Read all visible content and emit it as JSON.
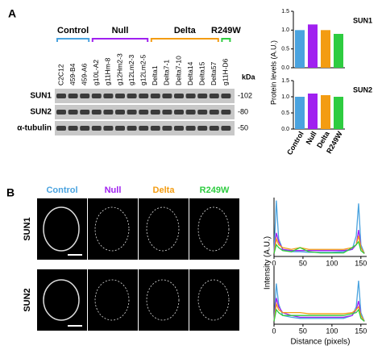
{
  "panel_a": {
    "label": "A",
    "kda_label": "kDa",
    "groups": [
      {
        "name": "Control",
        "color": "#4aa3df",
        "lanes": [
          "C2C12",
          "459-B4",
          "459-A6"
        ]
      },
      {
        "name": "Null",
        "color": "#a020f0",
        "lanes": [
          "g10L-A2",
          "g11Hm-8",
          "g12Hm2-3",
          "g12Lm2-3",
          "g12Lm2-5"
        ]
      },
      {
        "name": "Delta",
        "color": "#f39c12",
        "lanes": [
          "Delta1",
          "Delta7-1",
          "Delta7-10",
          "Delta14",
          "Delta15",
          "Delta57"
        ]
      },
      {
        "name": "R249W",
        "color": "#2ecc40",
        "lanes": [
          "g11H-D6"
        ]
      }
    ],
    "rows": [
      {
        "name": "SUN1",
        "kda": "-102"
      },
      {
        "name": "SUN2",
        "kda": "-80"
      },
      {
        "name": "α-tubulin",
        "kda": "-50"
      }
    ]
  },
  "panel_b": {
    "label": "B",
    "columns": [
      {
        "name": "Control",
        "color": "#4aa3df"
      },
      {
        "name": "Null",
        "color": "#a020f0"
      },
      {
        "name": "Delta",
        "color": "#f39c12"
      },
      {
        "name": "R249W",
        "color": "#2ecc40"
      }
    ],
    "rows": [
      "SUN1",
      "SUN2"
    ]
  },
  "chart_data": [
    {
      "type": "bar",
      "title": "SUN1",
      "ylabel": "Protein levels (A.U.)",
      "categories": [
        null,
        null,
        null,
        null
      ],
      "values": [
        1.0,
        1.15,
        1.0,
        0.9
      ],
      "colors": [
        "#4aa3df",
        "#a020f0",
        "#f39c12",
        "#2ecc40"
      ],
      "ylim": [
        0,
        1.5
      ],
      "yticks": [
        {
          "value": 0,
          "label": "0.0"
        },
        {
          "value": 0.5,
          "label": "0.5"
        },
        {
          "value": 1,
          "label": "1.0"
        },
        {
          "value": 1.5,
          "label": "1.5"
        }
      ]
    },
    {
      "type": "bar",
      "title": "SUN2",
      "categories": [
        "Control",
        "Null",
        "Delta",
        "R249W"
      ],
      "values": [
        1.0,
        1.1,
        1.05,
        1.0
      ],
      "colors": [
        "#4aa3df",
        "#a020f0",
        "#f39c12",
        "#2ecc40"
      ],
      "ylim": [
        0,
        1.5
      ],
      "yticks": [
        {
          "value": 0,
          "label": "0.0"
        },
        {
          "value": 0.5,
          "label": "0.5"
        },
        {
          "value": 1,
          "label": "1.0"
        },
        {
          "value": 1.5,
          "label": "1.5"
        }
      ]
    },
    {
      "type": "line",
      "ylabel": "Intensity (A.U.)",
      "x": [
        0,
        4,
        8,
        15,
        30,
        45,
        60,
        80,
        100,
        120,
        135,
        142,
        146,
        150,
        156
      ],
      "xlim": [
        0,
        160
      ],
      "xticks": [
        0,
        50,
        100,
        150
      ],
      "ylim": [
        0,
        1
      ],
      "series": [
        {
          "name": "Control",
          "color": "#4aa3df",
          "values": [
            0.05,
            0.95,
            0.3,
            0.12,
            0.08,
            0.08,
            0.07,
            0.07,
            0.07,
            0.08,
            0.12,
            0.35,
            0.9,
            0.2,
            0.05
          ]
        },
        {
          "name": "Null",
          "color": "#a020f0",
          "values": [
            0.05,
            0.4,
            0.25,
            0.12,
            0.1,
            0.1,
            0.1,
            0.1,
            0.1,
            0.1,
            0.12,
            0.2,
            0.45,
            0.15,
            0.05
          ]
        },
        {
          "name": "Delta",
          "color": "#f39c12",
          "values": [
            0.05,
            0.3,
            0.2,
            0.15,
            0.12,
            0.15,
            0.12,
            0.12,
            0.12,
            0.12,
            0.15,
            0.2,
            0.35,
            0.15,
            0.05
          ]
        },
        {
          "name": "R249W",
          "color": "#2ecc40",
          "values": [
            0.05,
            0.2,
            0.15,
            0.1,
            0.08,
            0.15,
            0.08,
            0.06,
            0.06,
            0.06,
            0.15,
            0.2,
            0.25,
            0.1,
            0.05
          ]
        }
      ]
    },
    {
      "type": "line",
      "xlabel": "Distance (pixels)",
      "x": [
        0,
        4,
        8,
        15,
        30,
        45,
        60,
        80,
        100,
        120,
        135,
        142,
        146,
        150,
        156
      ],
      "xlim": [
        0,
        160
      ],
      "xticks": [
        0,
        50,
        100,
        150
      ],
      "ylim": [
        0,
        1
      ],
      "series": [
        {
          "name": "Control",
          "color": "#4aa3df",
          "values": [
            0.05,
            0.7,
            0.35,
            0.15,
            0.12,
            0.1,
            0.1,
            0.1,
            0.1,
            0.1,
            0.15,
            0.3,
            0.75,
            0.2,
            0.05
          ]
        },
        {
          "name": "Null",
          "color": "#a020f0",
          "values": [
            0.05,
            0.45,
            0.3,
            0.2,
            0.15,
            0.12,
            0.12,
            0.12,
            0.12,
            0.12,
            0.15,
            0.25,
            0.4,
            0.15,
            0.05
          ]
        },
        {
          "name": "Delta",
          "color": "#f39c12",
          "values": [
            0.05,
            0.35,
            0.25,
            0.2,
            0.2,
            0.2,
            0.18,
            0.18,
            0.18,
            0.18,
            0.2,
            0.25,
            0.3,
            0.15,
            0.05
          ]
        },
        {
          "name": "R249W",
          "color": "#2ecc40",
          "values": [
            0.05,
            0.25,
            0.2,
            0.15,
            0.15,
            0.15,
            0.15,
            0.15,
            0.15,
            0.15,
            0.18,
            0.2,
            0.25,
            0.1,
            0.05
          ]
        }
      ]
    }
  ]
}
